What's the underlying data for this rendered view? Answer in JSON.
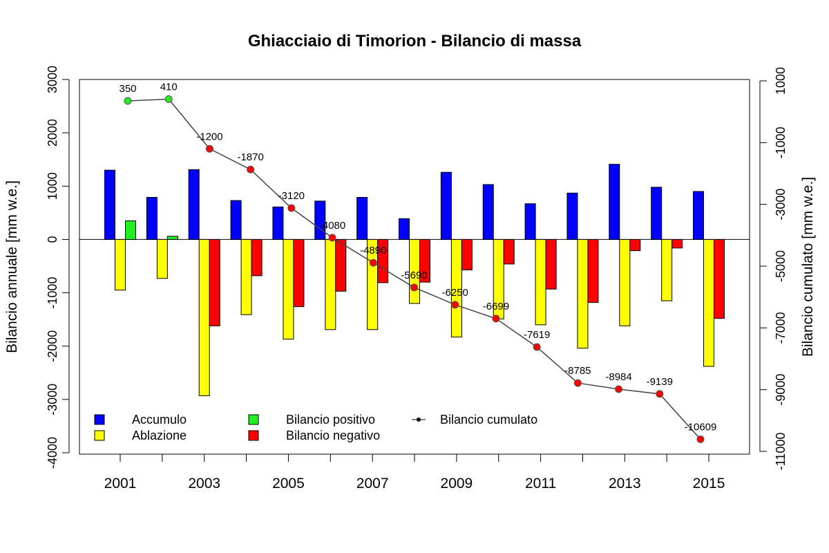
{
  "chart_data": {
    "type": "bar",
    "title": "Ghiacciaio di Timorion - Bilancio di massa",
    "y_label": "Bilancio annuale [mm w.e.]",
    "y2_label": "Bilancio cumulato [mm w.e.]",
    "categories": [
      "2001",
      null,
      "2003",
      null,
      "2005",
      null,
      "2007",
      null,
      "2009",
      null,
      "2011",
      null,
      "2013",
      null,
      "2015"
    ],
    "ylim": [
      -4000,
      3000
    ],
    "yticks": [
      -4000,
      -3000,
      -2000,
      -1000,
      0,
      1000,
      2000,
      3000
    ],
    "y2lim": [
      -11000,
      1000
    ],
    "y2ticks": [
      -11000,
      -9000,
      -7000,
      -5000,
      -3000,
      -1000,
      1000
    ],
    "series": [
      {
        "name": "Accumulo",
        "color": "#0000ff",
        "values": [
          1300,
          790,
          1310,
          730,
          610,
          720,
          790,
          390,
          1260,
          1030,
          670,
          870,
          1410,
          980,
          900
        ]
      },
      {
        "name": "Ablazione",
        "color": "#ffff00",
        "values": [
          -950,
          -730,
          -2930,
          -1410,
          -1870,
          -1690,
          -1690,
          -1200,
          -1830,
          -1490,
          -1600,
          -2040,
          -1620,
          -1150,
          -2380
        ]
      },
      {
        "name": "Bilancio positivo",
        "color": "#22ee22",
        "values": [
          350,
          60,
          null,
          null,
          null,
          null,
          null,
          null,
          null,
          null,
          null,
          null,
          null,
          null,
          null
        ]
      },
      {
        "name": "Bilancio negativo",
        "color": "#ff0000",
        "values": [
          null,
          null,
          -1620,
          -680,
          -1260,
          -970,
          -810,
          -800,
          -570,
          -460,
          -930,
          -1180,
          -210,
          -160,
          -1480
        ]
      },
      {
        "name": "Bilancio cumulato",
        "type": "line",
        "axis": "y2",
        "color": "#444444",
        "values": [
          350,
          410,
          -1200,
          -1870,
          -3120,
          -4080,
          -4890,
          -5690,
          -6250,
          -6699,
          -7619,
          -8785,
          -8984,
          -9139,
          -10609
        ]
      }
    ]
  }
}
